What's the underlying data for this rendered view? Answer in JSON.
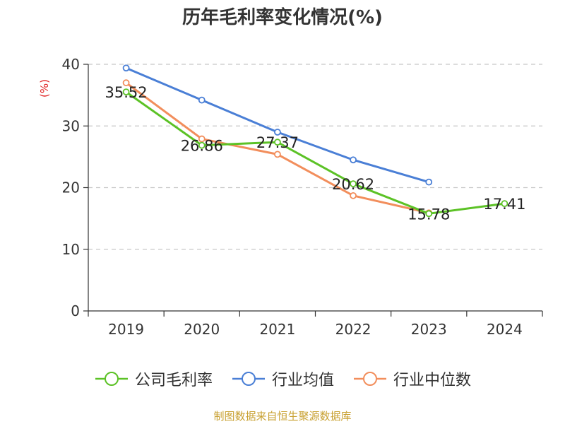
{
  "chart_data": {
    "type": "line",
    "title": "历年毛利率变化情况(%)",
    "ylabel": "(%)",
    "xlabel": "",
    "categories": [
      "2019",
      "2020",
      "2021",
      "2022",
      "2023",
      "2024"
    ],
    "ylim": [
      0,
      40
    ],
    "yticks": [
      0,
      10,
      20,
      30,
      40
    ],
    "grid": true,
    "legend_position": "bottom",
    "series": [
      {
        "name": "公司毛利率",
        "color": "#5cc226",
        "values": [
          35.52,
          26.86,
          27.37,
          20.62,
          15.78,
          17.41
        ],
        "labels": [
          "35.52",
          "26.86",
          "27.37",
          "20.62",
          "15.78",
          "17.41"
        ]
      },
      {
        "name": "行业均值",
        "color": "#4a7fd6",
        "values": [
          39.4,
          34.2,
          29.0,
          24.5,
          20.9,
          null
        ]
      },
      {
        "name": "行业中位数",
        "color": "#f28e5c",
        "values": [
          37.0,
          27.9,
          25.4,
          18.7,
          15.9,
          null
        ]
      }
    ]
  },
  "source": "制图数据来自恒生聚源数据库"
}
